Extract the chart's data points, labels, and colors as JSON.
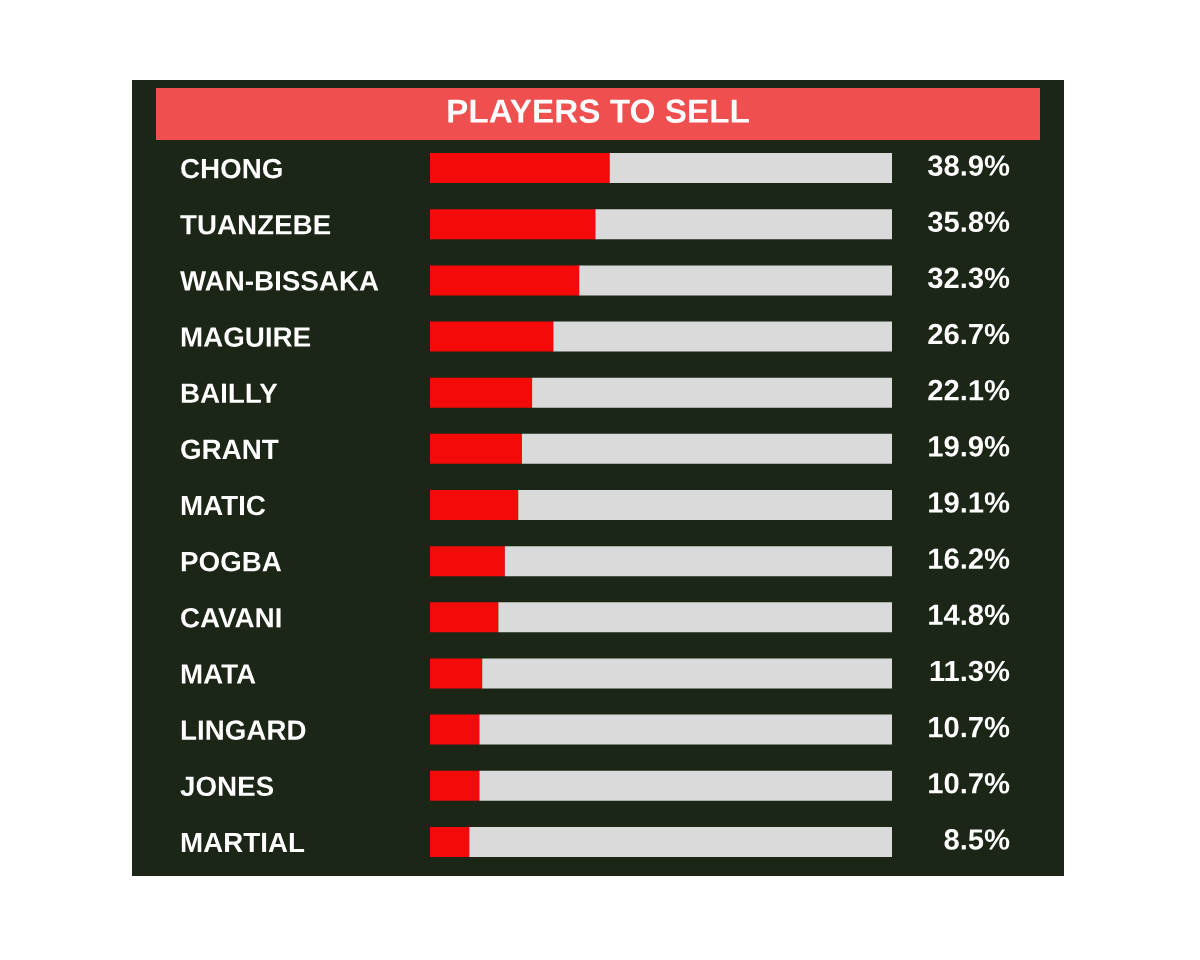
{
  "chart_data": {
    "type": "bar",
    "orientation": "horizontal",
    "stacked": true,
    "title": "PLAYERS TO SELL",
    "categories": [
      "CHONG",
      "TUANZEBE",
      "WAN-BISSAKA",
      "MAGUIRE",
      "BAILLY",
      "GRANT",
      "MATIC",
      "POGBA",
      "CAVANI",
      "MATA",
      "LINGARD",
      "JONES",
      "MARTIAL"
    ],
    "series": [
      {
        "color": "#f50a0a",
        "values": [
          38.9,
          35.8,
          32.3,
          26.7,
          22.1,
          19.9,
          19.1,
          16.2,
          14.8,
          11.3,
          10.7,
          10.7,
          8.5
        ],
        "value_labels": [
          "38.9%",
          "35.8%",
          "32.3%",
          "26.7%",
          "22.1%",
          "19.9%",
          "19.1%",
          "16.2%",
          "14.8%",
          "11.3%",
          "10.7%",
          "10.7%",
          "8.5%"
        ]
      },
      {
        "color": "#dadada",
        "values": [
          61.1,
          64.2,
          67.7,
          73.3,
          77.9,
          80.1,
          80.9,
          83.8,
          85.2,
          88.7,
          89.3,
          89.3,
          91.5
        ]
      }
    ],
    "xlim": [
      0,
      100
    ],
    "tick_labels": "y"
  }
}
